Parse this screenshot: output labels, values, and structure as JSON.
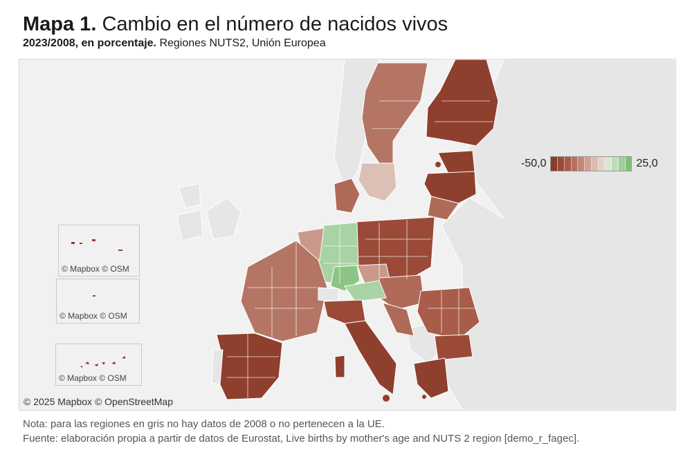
{
  "title": {
    "bold": "Mapa 1.",
    "text": "Cambio en el número de nacidos vivos"
  },
  "subtitle": {
    "bold": "2023/2008, en porcentaje.",
    "text": "Regiones NUTS2, Unión Europea"
  },
  "legend": {
    "min_label": "-50,0",
    "max_label": "25,0",
    "colors": [
      "#8c3b2a",
      "#9b4a38",
      "#a85c49",
      "#b5705e",
      "#c28877",
      "#cfa193",
      "#dbbcb1",
      "#e4d0c9",
      "#d9e6d6",
      "#bfdcbc",
      "#9fcd9b",
      "#7fbf7a"
    ]
  },
  "map": {
    "attribution": "© 2025 Mapbox  © OpenStreetMap",
    "colors": {
      "background": "#f1f1f1",
      "land": "#e4e4e4",
      "border": "#ffffff",
      "dark": "#8f3f2e",
      "medium": "#b06a58",
      "light": "#c99a8c",
      "pale": "#dcc0b6",
      "green": "#a9d3a4",
      "green_dark": "#8cc486"
    },
    "insets": [
      {
        "attribution": "© Mapbox  © OSM"
      },
      {
        "attribution": "© Mapbox  © OSM"
      },
      {
        "attribution": "© Mapbox  © OSM"
      }
    ]
  },
  "notes": {
    "line1": "Nota: para las regiones en gris no hay datos de 2008 o no pertenecen a la UE.",
    "line2": "Fuente: elaboración propia a partir de datos de Eurostat, Live births by mother's age and NUTS 2 region [demo_r_fagec]."
  }
}
